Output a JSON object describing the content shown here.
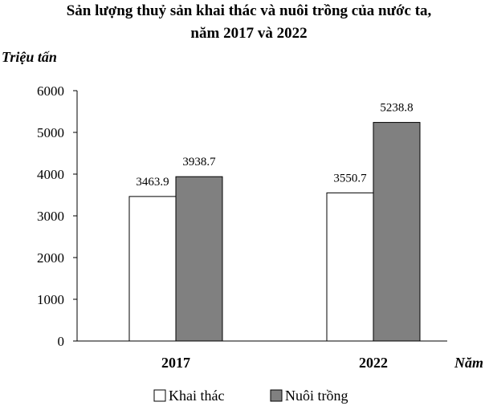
{
  "chart_data": {
    "type": "bar",
    "title_line1": "Sản lượng thuỷ sản khai thác và nuôi trồng của nước ta,",
    "title_line2": "năm 2017 và 2022",
    "ylabel": "Triệu tấn",
    "xlabel": "Năm",
    "categories": [
      "2017",
      "2022"
    ],
    "series": [
      {
        "name": "Khai thác",
        "values": [
          3463.9,
          3550.7
        ],
        "labels": [
          "3463.9",
          "3550.7"
        ],
        "color": "#ffffff"
      },
      {
        "name": "Nuôi trồng",
        "values": [
          3938.7,
          5238.8
        ],
        "labels": [
          "3938.7",
          "5238.8"
        ],
        "color": "#808080"
      }
    ],
    "ylim": [
      0,
      6000
    ],
    "yticks": [
      "0",
      "1000",
      "2000",
      "3000",
      "4000",
      "5000",
      "6000"
    ],
    "grid": false,
    "legend": "bottom"
  }
}
